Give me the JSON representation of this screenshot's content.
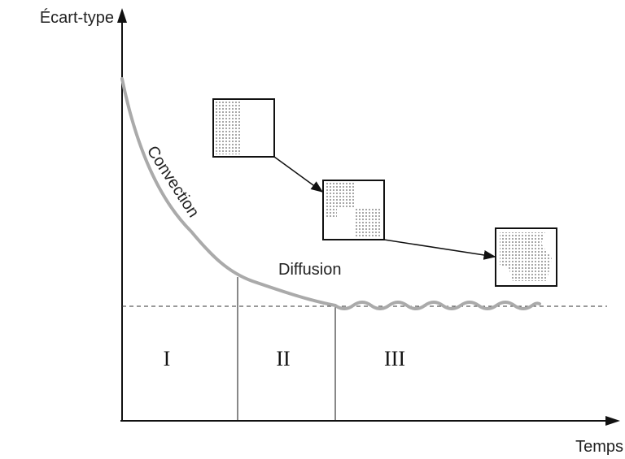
{
  "axes": {
    "y_label": "Écart-type",
    "x_label": "Temps"
  },
  "curve_labels": {
    "convection": "Convection",
    "diffusion": "Diffusion"
  },
  "regions": [
    "I",
    "II",
    "III"
  ]
}
